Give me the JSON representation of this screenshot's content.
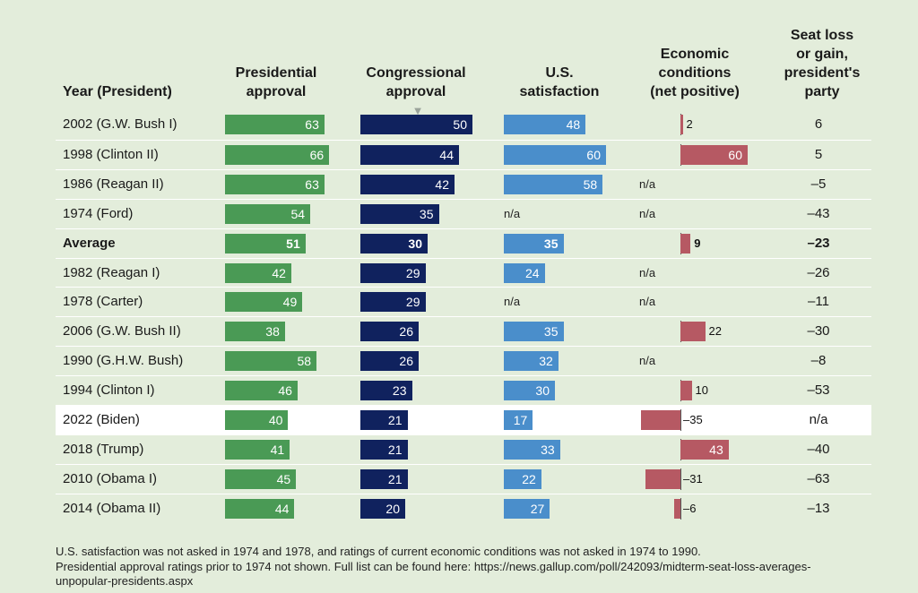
{
  "headers": {
    "year": "Year (President)",
    "pres_1": "Presidential",
    "pres_2": "approval",
    "cong_1": "Congressional",
    "cong_2": "approval",
    "sat_1": "U.S.",
    "sat_2": "satisfaction",
    "econ_1": "Economic",
    "econ_2": "conditions",
    "econ_3": "(net positive)",
    "seat_1": "Seat loss",
    "seat_2": "or gain,",
    "seat_3": "president's",
    "seat_4": "party"
  },
  "colors": {
    "presidential": "#4a9a55",
    "congressional": "#10225e",
    "satisfaction": "#4a8ecb",
    "economic": "#b65963",
    "highlight_row": "#ffffff"
  },
  "chart_data": {
    "type": "table",
    "columns": [
      "Year (President)",
      "Presidential approval",
      "Congressional approval",
      "U.S. satisfaction",
      "Economic conditions (net positive)",
      "Seat loss or gain, president's party"
    ],
    "sorted_by": "Congressional approval",
    "rows": [
      {
        "year": "2002 (G.W. Bush I)",
        "pres": 63,
        "cong": 50,
        "sat": 48,
        "econ": 2,
        "econ_label": "2",
        "seat": "6"
      },
      {
        "year": "1998 (Clinton II)",
        "pres": 66,
        "cong": 44,
        "sat": 60,
        "econ": 60,
        "econ_label": "60",
        "seat": "5"
      },
      {
        "year": "1986 (Reagan II)",
        "pres": 63,
        "cong": 42,
        "sat": 58,
        "econ": null,
        "econ_label": "n/a",
        "seat": "–5"
      },
      {
        "year": "1974 (Ford)",
        "pres": 54,
        "cong": 35,
        "sat": null,
        "sat_label": "n/a",
        "econ": null,
        "econ_label": "n/a",
        "seat": "–43"
      },
      {
        "year": "Average",
        "pres": 51,
        "cong": 30,
        "sat": 35,
        "econ": 9,
        "econ_label": "9",
        "seat": "–23",
        "bold": true
      },
      {
        "year": "1982 (Reagan I)",
        "pres": 42,
        "cong": 29,
        "sat": 24,
        "econ": null,
        "econ_label": "n/a",
        "seat": "–26"
      },
      {
        "year": "1978 (Carter)",
        "pres": 49,
        "cong": 29,
        "sat": null,
        "sat_label": "n/a",
        "econ": null,
        "econ_label": "n/a",
        "seat": "–11"
      },
      {
        "year": "2006 (G.W. Bush II)",
        "pres": 38,
        "cong": 26,
        "sat": 35,
        "econ": 22,
        "econ_label": "22",
        "seat": "–30"
      },
      {
        "year": "1990 (G.H.W. Bush)",
        "pres": 58,
        "cong": 26,
        "sat": 32,
        "econ": null,
        "econ_label": "n/a",
        "seat": "–8"
      },
      {
        "year": "1994 (Clinton I)",
        "pres": 46,
        "cong": 23,
        "sat": 30,
        "econ": 10,
        "econ_label": "10",
        "seat": "–53"
      },
      {
        "year": "2022 (Biden)",
        "pres": 40,
        "cong": 21,
        "sat": 17,
        "econ": -35,
        "econ_label": "–35",
        "seat": "n/a",
        "highlight": true
      },
      {
        "year": "2018 (Trump)",
        "pres": 41,
        "cong": 21,
        "sat": 33,
        "econ": 43,
        "econ_label": "43",
        "seat": "–40"
      },
      {
        "year": "2010 (Obama I)",
        "pres": 45,
        "cong": 21,
        "sat": 22,
        "econ": -31,
        "econ_label": "–31",
        "seat": "–63"
      },
      {
        "year": "2014 (Obama II)",
        "pres": 44,
        "cong": 20,
        "sat": 27,
        "econ": -6,
        "econ_label": "–6",
        "seat": "–13"
      }
    ]
  },
  "notes": [
    "U.S. satisfaction was not asked in 1974 and 1978, and ratings of current economic conditions was not asked in 1974 to 1990.",
    "Presidential approval ratings prior to 1974 not shown. Full list can be found here: https://news.gallup.com/poll/242093/midterm-seat-loss-averages-",
    "unpopular-presidents.aspx"
  ]
}
